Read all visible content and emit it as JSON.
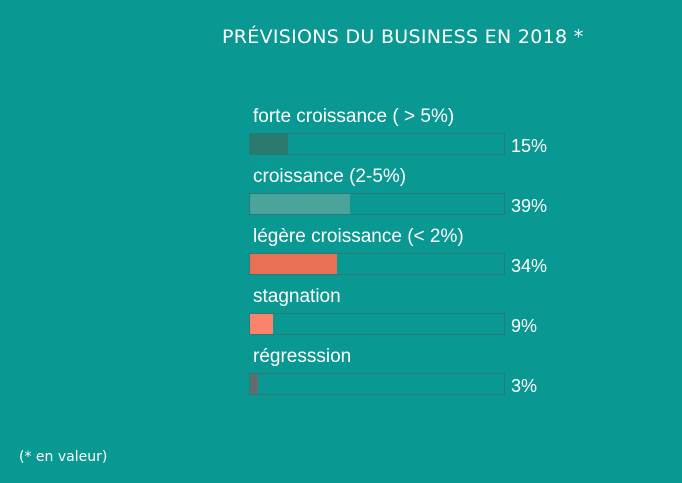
{
  "chart_data": {
    "type": "bar",
    "orientation": "horizontal",
    "title": "PRÉVISIONS DU BUSINESS EN 2018 *",
    "categories": [
      "forte croissance ( > 5%)",
      "croissance (2-5%)",
      "légère croissance (< 2%)",
      "stagnation",
      "régresssion"
    ],
    "values": [
      15,
      39,
      34,
      9,
      3
    ],
    "value_labels": [
      "15%",
      "39%",
      "34%",
      "9%",
      "3%"
    ],
    "colors": [
      "#2a7a6f",
      "#4aa49a",
      "#e97054",
      "#fb836b",
      "#5f6c70"
    ],
    "xlim": [
      0,
      100
    ],
    "footnote": "(* en valeur)"
  }
}
